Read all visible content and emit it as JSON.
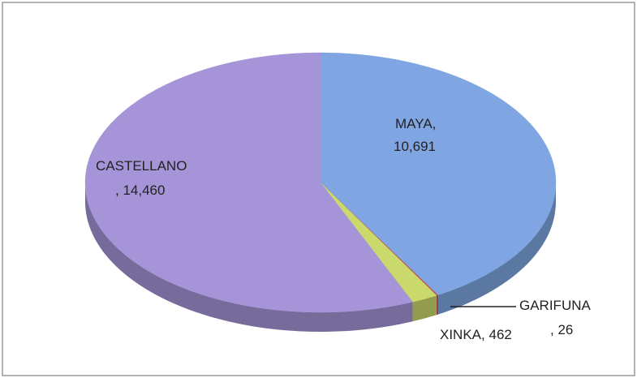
{
  "chart_data": {
    "type": "pie3d",
    "categories": [
      "MAYA",
      "GARIFUNA",
      "XINKA",
      "CASTELLANO"
    ],
    "values": [
      10691,
      26,
      462,
      14460
    ],
    "value_labels": [
      "10,691",
      "26",
      "462",
      "14,460"
    ],
    "colors": [
      "#7fa6e2",
      "#c0504d",
      "#c9d96b",
      "#a594d8"
    ]
  }
}
